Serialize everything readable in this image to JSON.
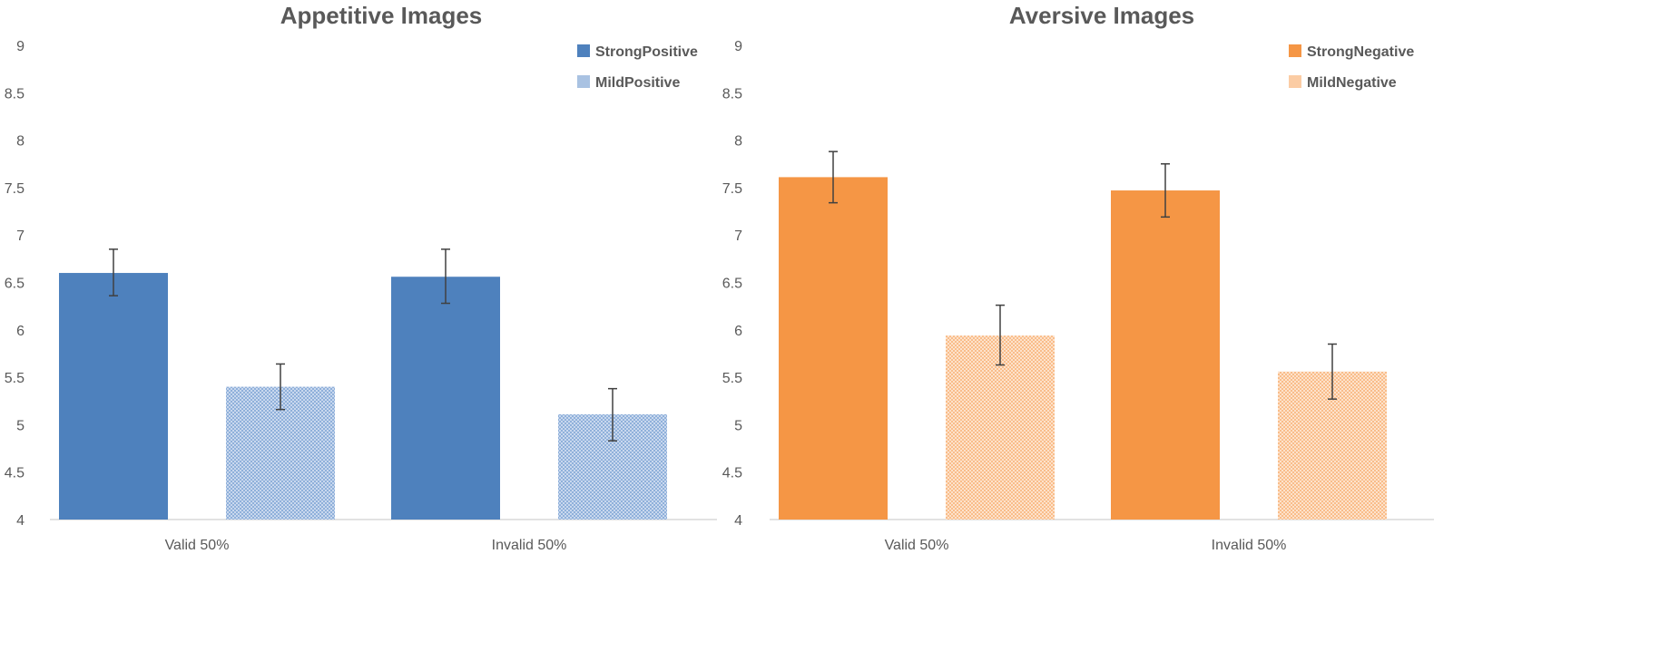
{
  "chart_data": [
    {
      "type": "bar",
      "title": "Appetitive Images",
      "xlabel": "",
      "ylabel": "",
      "ylim": [
        4,
        9
      ],
      "yticks": [
        "4",
        "4.5",
        "5",
        "5.5",
        "6",
        "6.5",
        "7",
        "7.5",
        "8",
        "8.5",
        "9"
      ],
      "categories": [
        "Valid 50%",
        "Invalid 50%"
      ],
      "legend_position": "top-right",
      "series": [
        {
          "name": "StrongPositive",
          "color": "#4e81bd",
          "pattern": "solid",
          "values": [
            6.6,
            6.56
          ],
          "err_low": [
            6.36,
            6.28
          ],
          "err_high": [
            6.85,
            6.85
          ]
        },
        {
          "name": "MildPositive",
          "color": "#a9c2e2",
          "pattern": "checker",
          "values": [
            5.4,
            5.11
          ],
          "err_low": [
            5.16,
            4.83
          ],
          "err_high": [
            5.64,
            5.38
          ]
        }
      ]
    },
    {
      "type": "bar",
      "title": "Aversive Images",
      "xlabel": "",
      "ylabel": "",
      "ylim": [
        4,
        9
      ],
      "yticks": [
        "4",
        "4.5",
        "5",
        "5.5",
        "6",
        "6.5",
        "7",
        "7.5",
        "8",
        "8.5",
        "9"
      ],
      "categories": [
        "Valid 50%",
        "Invalid 50%"
      ],
      "legend_position": "top-right",
      "series": [
        {
          "name": "StrongNegative",
          "color": "#f59645",
          "pattern": "solid",
          "values": [
            7.61,
            7.47
          ],
          "err_low": [
            7.34,
            7.19
          ],
          "err_high": [
            7.88,
            7.75
          ]
        },
        {
          "name": "MildNegative",
          "color": "#fbcca4",
          "pattern": "checker",
          "values": [
            5.94,
            5.56
          ],
          "err_low": [
            5.63,
            5.27
          ],
          "err_high": [
            6.26,
            5.85
          ]
        }
      ]
    }
  ]
}
